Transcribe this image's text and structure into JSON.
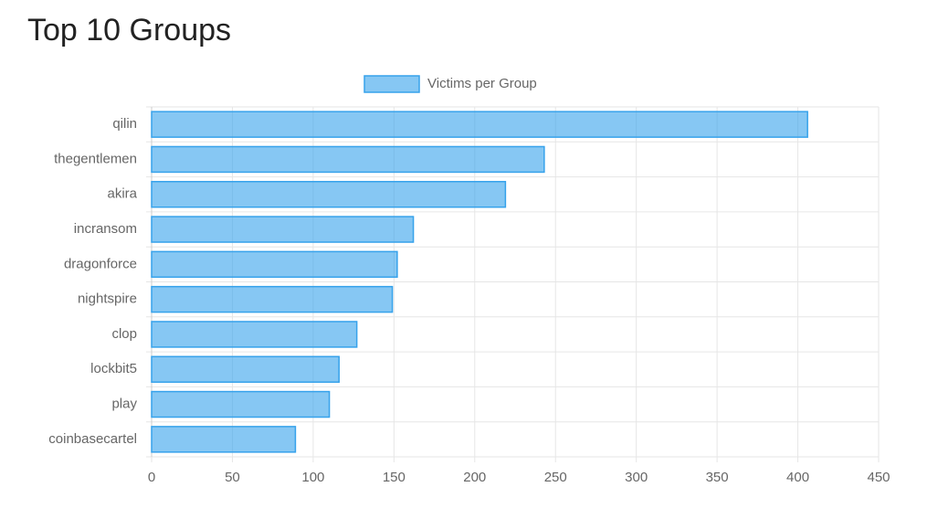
{
  "chart_data": {
    "type": "bar",
    "orientation": "horizontal",
    "title": "Top 10 Groups",
    "categories": [
      "qilin",
      "thegentlemen",
      "akira",
      "incransom",
      "dragonforce",
      "nightspire",
      "clop",
      "lockbit5",
      "play",
      "coinbasecartel"
    ],
    "series": [
      {
        "name": "Victims per Group",
        "color": "#36a2eb",
        "values": [
          406,
          243,
          219,
          162,
          152,
          149,
          127,
          116,
          110,
          89
        ]
      }
    ],
    "xlim": [
      0,
      450
    ],
    "xticks": [
      0,
      50,
      100,
      150,
      200,
      250,
      300,
      350,
      400,
      450
    ],
    "grid": true,
    "legend": "top"
  }
}
